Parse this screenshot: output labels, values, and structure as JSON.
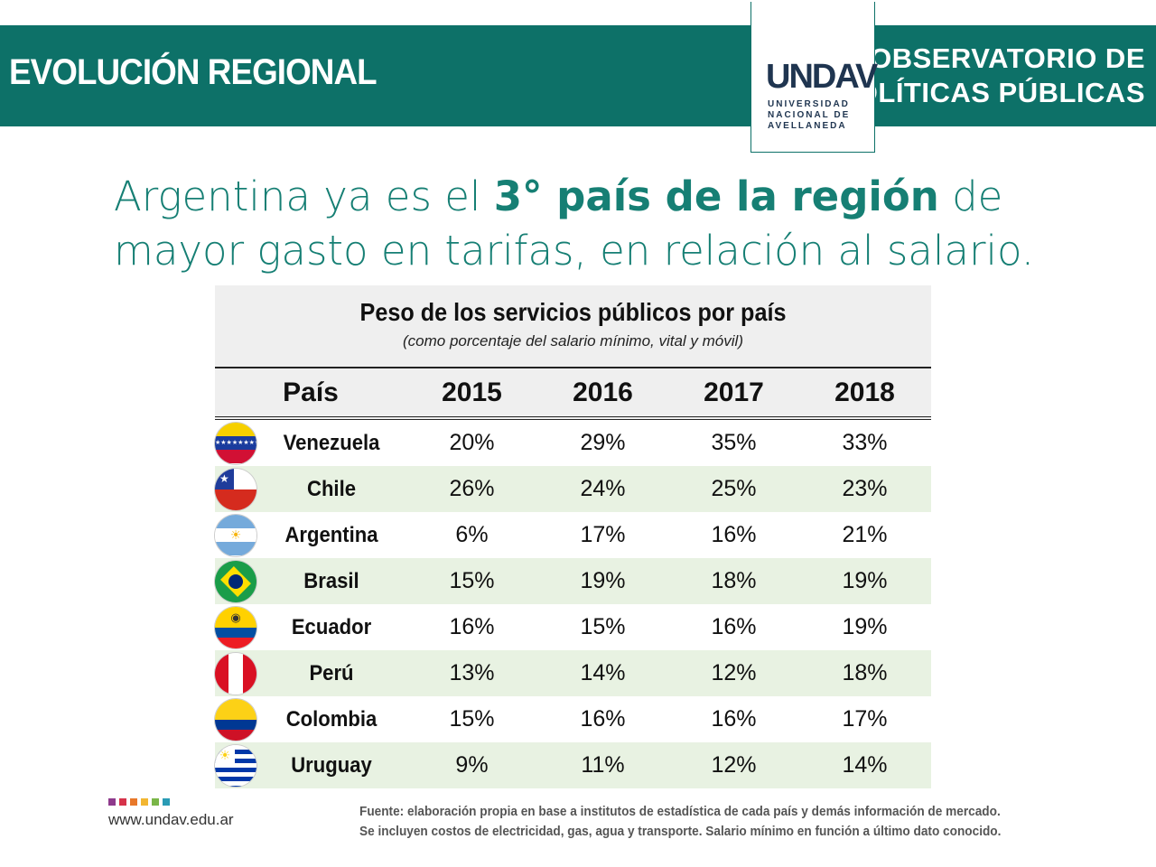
{
  "header": {
    "title": "EVOLUCIÓN REGIONAL",
    "right_line1": "OBSERVATORIO DE",
    "right_line2": "POLÍTICAS PÚBLICAS",
    "logo_word": "UNDAV",
    "logo_sub_1": "UNIVERSIDAD",
    "logo_sub_2": "NACIONAL DE",
    "logo_sub_3": "AVELLANEDA"
  },
  "headline": {
    "part1": "Argentina ya es el ",
    "bold": "3° país de la región",
    "part2": " de",
    "line2": "mayor gasto en tarifas, en relación al salario."
  },
  "table": {
    "title": "Peso de los servicios públicos por país",
    "subtitle": "(como porcentaje del salario mínimo, vital y móvil)",
    "columns": [
      "País",
      "2015",
      "2016",
      "2017",
      "2018"
    ],
    "rows": [
      {
        "country": "Venezuela",
        "flag": "venezuela-flag",
        "values": [
          "20%",
          "29%",
          "35%",
          "33%"
        ]
      },
      {
        "country": "Chile",
        "flag": "chile-flag",
        "values": [
          "26%",
          "24%",
          "25%",
          "23%"
        ]
      },
      {
        "country": "Argentina",
        "flag": "argentina-flag",
        "values": [
          "6%",
          "17%",
          "16%",
          "21%"
        ]
      },
      {
        "country": "Brasil",
        "flag": "brasil-flag",
        "values": [
          "15%",
          "19%",
          "18%",
          "19%"
        ]
      },
      {
        "country": "Ecuador",
        "flag": "ecuador-flag",
        "values": [
          "16%",
          "15%",
          "16%",
          "19%"
        ]
      },
      {
        "country": "Perú",
        "flag": "peru-flag",
        "values": [
          "13%",
          "14%",
          "12%",
          "18%"
        ]
      },
      {
        "country": "Colombia",
        "flag": "colombia-flag",
        "values": [
          "15%",
          "16%",
          "16%",
          "17%"
        ]
      },
      {
        "country": "Uruguay",
        "flag": "uruguay-flag",
        "values": [
          "9%",
          "11%",
          "12%",
          "14%"
        ]
      }
    ]
  },
  "footer": {
    "url": "www.undav.edu.ar",
    "note_line1": "Fuente: elaboración propia en base a institutos de estadística de cada país y demás información de mercado.",
    "note_line2": "Se incluyen costos de electricidad, gas, agua y transporte. Salario mínimo en función a último dato conocido.",
    "dot_colors": [
      "#8e3a8c",
      "#d6334a",
      "#e8782a",
      "#f2b632",
      "#7ab648",
      "#2a9bb5"
    ]
  },
  "colors": {
    "brand": "#0d7168",
    "headline": "#167f74",
    "row_alt": "#e8f2e2"
  }
}
